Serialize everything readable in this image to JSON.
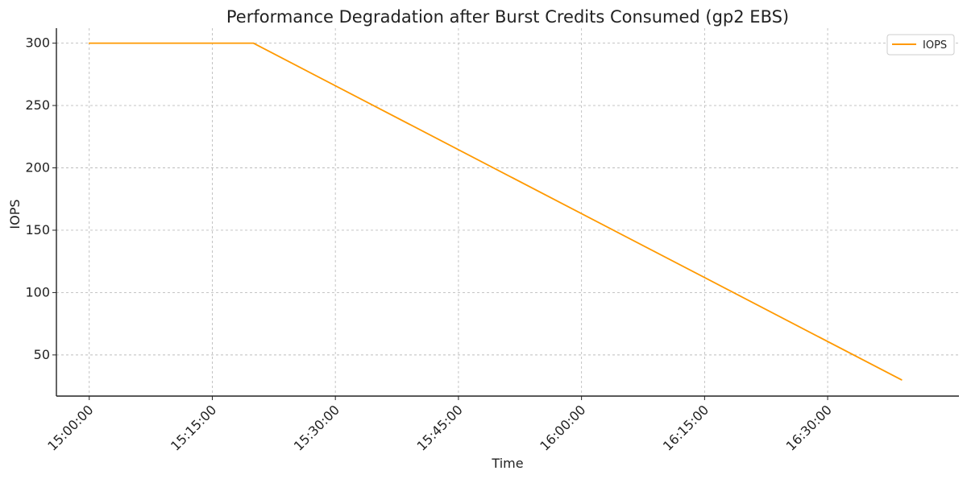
{
  "chart_data": {
    "type": "line",
    "title": "Performance Degradation after Burst Credits Consumed (gp2 EBS)",
    "xlabel": "Time",
    "ylabel": "IOPS",
    "x_ticks": [
      "15:00:00",
      "15:15:00",
      "15:30:00",
      "15:45:00",
      "16:00:00",
      "16:15:00",
      "16:30:00"
    ],
    "x_tick_minutes": [
      0,
      15,
      30,
      45,
      60,
      75,
      90
    ],
    "y_ticks": [
      50,
      100,
      150,
      200,
      250,
      300
    ],
    "xlim": [
      "14:56:00",
      "16:46:00"
    ],
    "ylim": [
      17,
      312
    ],
    "grid": true,
    "legend_position": "top-right",
    "series": [
      {
        "name": "IOPS",
        "color": "#ff9900",
        "x": [
          "15:00:00",
          "15:20:00",
          "16:39:00"
        ],
        "values": [
          300,
          300,
          30
        ]
      }
    ]
  }
}
